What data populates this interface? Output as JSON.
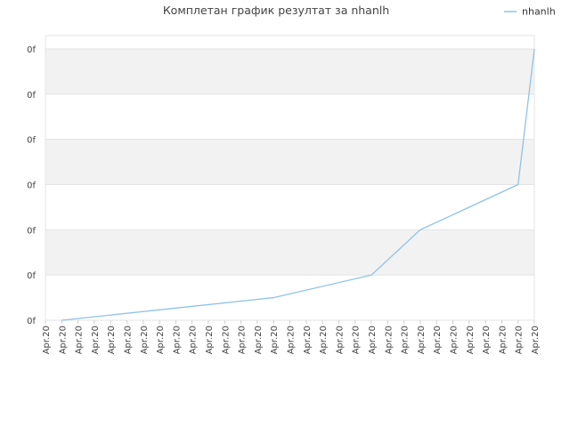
{
  "chart_data": {
    "type": "line",
    "title": "Комплетан график резултат за nhanlh",
    "legend": {
      "position": "top-right"
    },
    "grid": true,
    "x_tick_labels": [
      "Apr.20",
      "Apr.20",
      "Apr.20",
      "Apr.20",
      "Apr.20",
      "Apr.20",
      "Apr.20",
      "Apr.20",
      "Apr.20",
      "Apr.20",
      "Apr.20",
      "Apr.20",
      "Apr.20",
      "Apr.20",
      "Apr.20",
      "Apr.20",
      "Apr.20",
      "Apr.20",
      "Apr.20",
      "Apr.20",
      "Apr.20",
      "Apr.20",
      "Apr.20",
      "Apr.20",
      "Apr.20",
      "Apr.20",
      "Apr.20",
      "Apr.20",
      "Apr.20",
      "Apr.20",
      "Apr.20"
    ],
    "y_tick_labels": [
      "0f",
      "0f",
      "0f",
      "0f",
      "0f",
      "0f",
      "0f"
    ],
    "ylim": [
      0,
      6
    ],
    "series": [
      {
        "name": "nhanlh",
        "color": "#8ec3ea",
        "x": [
          1,
          14,
          20,
          23,
          29,
          30
        ],
        "y": [
          0,
          0.5,
          1,
          2,
          3,
          6
        ]
      }
    ]
  }
}
